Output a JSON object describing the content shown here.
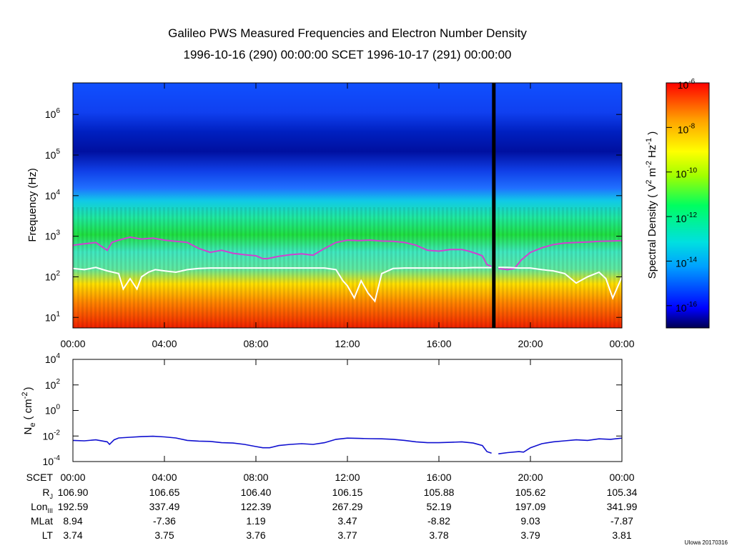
{
  "chart_data": [
    {
      "type": "heatmap",
      "title": "Galileo PWS Measured Frequencies and Electron Number Density",
      "subtitle": "1996-10-16 (290) 00:00:00 SCET 1996-10-17 (291) 00:00:00",
      "ylabel": "Frequency (Hz)",
      "ylabel_svg": "Frequency (Hz)",
      "yscale": "log",
      "ylim": [
        5.5,
        6000000
      ],
      "yticks": [
        {
          "base": "10",
          "exp": "1",
          "value": 10
        },
        {
          "base": "10",
          "exp": "2",
          "value": 100
        },
        {
          "base": "10",
          "exp": "3",
          "value": 1000
        },
        {
          "base": "10",
          "exp": "4",
          "value": 10000
        },
        {
          "base": "10",
          "exp": "5",
          "value": 100000
        },
        {
          "base": "10",
          "exp": "6",
          "value": 1000000
        }
      ],
      "xlim_hours": [
        0,
        24
      ],
      "xticks": [
        "00:00",
        "04:00",
        "08:00",
        "12:00",
        "16:00",
        "20:00",
        "00:00"
      ],
      "xtick_hours": [
        0,
        4,
        8,
        12,
        16,
        20,
        24
      ],
      "data_gap_hour": 18.4,
      "colorbar": {
        "label_prefix": "Spectral Density ( V",
        "label_mid1": " m",
        "label_mid2": " Hz",
        "label_suffix": " )",
        "sup_2": "2",
        "sup_neg2": "-2",
        "sup_neg1": "-1",
        "scale": "log",
        "range": [
          1e-17,
          1e-06
        ],
        "ticks": [
          {
            "base": "10",
            "exp": "-6",
            "value": 1e-06
          },
          {
            "base": "10",
            "exp": "-8",
            "value": 1e-08
          },
          {
            "base": "10",
            "exp": "-10",
            "value": 1e-10
          },
          {
            "base": "10",
            "exp": "-12",
            "value": 1e-12
          },
          {
            "base": "10",
            "exp": "-14",
            "value": 1e-14
          },
          {
            "base": "10",
            "exp": "-16",
            "value": 1e-16
          }
        ],
        "colors": [
          "#7f00ff",
          "#0000ff",
          "#00a0ff",
          "#00e0e0",
          "#00ff60",
          "#a0ff00",
          "#ffff00",
          "#ffa000",
          "#ff0000"
        ]
      },
      "series": [
        {
          "name": "upper hybrid frequency (magenta)",
          "color": "#d040d0",
          "hours": [
            0,
            0.5,
            1,
            1.5,
            1.7,
            2,
            2.5,
            3,
            3.5,
            4,
            4.5,
            5,
            5.5,
            6,
            6.5,
            7,
            7.5,
            8,
            8.3,
            8.5,
            9,
            9.5,
            10,
            10.5,
            11,
            11.5,
            12,
            12.5,
            13,
            13.5,
            14,
            14.5,
            15,
            15.5,
            16,
            16.5,
            17,
            17.3,
            17.6,
            17.9,
            18.1,
            18.3
          ],
          "values": [
            600,
            650,
            700,
            450,
            700,
            800,
            950,
            850,
            900,
            800,
            750,
            700,
            500,
            400,
            450,
            380,
            350,
            330,
            280,
            280,
            320,
            350,
            370,
            340,
            500,
            700,
            800,
            780,
            800,
            760,
            750,
            700,
            600,
            450,
            430,
            470,
            470,
            430,
            380,
            330,
            200,
            180
          ]
        },
        {
          "name": "upper hybrid frequency after gap (magenta)",
          "color": "#d040d0",
          "hours": [
            18.6,
            19,
            19.3,
            19.6,
            20,
            20.5,
            21,
            21.5,
            22,
            22.5,
            23,
            23.5,
            24
          ],
          "values": [
            160,
            150,
            160,
            260,
            400,
            520,
            620,
            680,
            700,
            720,
            750,
            760,
            780
          ]
        },
        {
          "name": "local frequency trace (white)",
          "color": "#ffffff",
          "hours": [
            0,
            0.5,
            1,
            1.5,
            2,
            2.2,
            2.5,
            2.8,
            3,
            3.3,
            3.6,
            4,
            4.5,
            5,
            5.5,
            6,
            7,
            8,
            9,
            10,
            11,
            11.5,
            11.8,
            12,
            12.3,
            12.6,
            12.9,
            13.2,
            13.5,
            14,
            14.5,
            15,
            16,
            17,
            17.5,
            18,
            18.3
          ],
          "values": [
            160,
            150,
            170,
            140,
            120,
            50,
            90,
            50,
            100,
            130,
            150,
            140,
            130,
            150,
            160,
            165,
            165,
            165,
            165,
            165,
            165,
            150,
            80,
            60,
            30,
            80,
            40,
            25,
            120,
            160,
            165,
            165,
            165,
            165,
            168,
            168,
            168
          ],
          "values_note": "Hz"
        },
        {
          "name": "local frequency trace after gap (white)",
          "color": "#ffffff",
          "hours": [
            18.6,
            19,
            19.5,
            20,
            20.5,
            21,
            21.5,
            22,
            22.5,
            23,
            23.3,
            23.6,
            24
          ],
          "values": [
            170,
            170,
            165,
            165,
            150,
            140,
            120,
            70,
            100,
            130,
            90,
            30,
            100
          ]
        }
      ]
    },
    {
      "type": "line",
      "ylabel_base": "N",
      "ylabel_sub": "e",
      "ylabel_unit_prefix": "( cm",
      "ylabel_unit_sup": "-2",
      "ylabel_unit_suffix": ")",
      "yscale": "log",
      "ylim": [
        0.0001,
        10000
      ],
      "yticks": [
        {
          "base": "10",
          "exp": "4",
          "value": 10000
        },
        {
          "base": "10",
          "exp": "2",
          "value": 100
        },
        {
          "base": "10",
          "exp": "0",
          "value": 1
        },
        {
          "base": "10",
          "exp": "-2",
          "value": 0.01
        },
        {
          "base": "10",
          "exp": "-4",
          "value": 0.0001
        }
      ],
      "series": [
        {
          "name": "Electron number density",
          "color": "#1010d0",
          "hours": [
            0,
            0.5,
            1,
            1.5,
            1.6,
            1.8,
            2,
            2.5,
            3,
            3.5,
            4,
            4.5,
            5,
            5.5,
            6,
            6.5,
            7,
            7.5,
            8,
            8.3,
            8.6,
            9,
            9.5,
            10,
            10.5,
            11,
            11.5,
            12,
            12.5,
            13,
            13.5,
            14,
            14.5,
            15,
            15.5,
            16,
            16.5,
            17,
            17.5,
            17.9,
            18.1,
            18.3
          ],
          "values": [
            0.0045,
            0.0042,
            0.005,
            0.0035,
            0.0022,
            0.005,
            0.007,
            0.008,
            0.009,
            0.0095,
            0.0085,
            0.007,
            0.0045,
            0.004,
            0.0038,
            0.003,
            0.0028,
            0.0022,
            0.0015,
            0.0012,
            0.0012,
            0.0018,
            0.0022,
            0.0025,
            0.0022,
            0.003,
            0.0055,
            0.0068,
            0.0065,
            0.0062,
            0.006,
            0.0055,
            0.0045,
            0.0035,
            0.003,
            0.003,
            0.0032,
            0.0035,
            0.0028,
            0.0018,
            0.0006,
            0.00045
          ]
        },
        {
          "name": "Electron number density after gap",
          "color": "#1010d0",
          "hours": [
            18.6,
            19,
            19.5,
            19.7,
            20,
            20.5,
            21,
            21.5,
            22,
            22.5,
            23,
            23.5,
            24
          ],
          "values": [
            0.0004,
            0.0005,
            0.0006,
            0.00055,
            0.0012,
            0.0025,
            0.0035,
            0.0042,
            0.005,
            0.0045,
            0.006,
            0.0055,
            0.0068
          ]
        }
      ]
    }
  ],
  "ephemeris": {
    "rows": [
      {
        "label": "SCET",
        "label_sub": "",
        "values": [
          "00:00",
          "04:00",
          "08:00",
          "12:00",
          "16:00",
          "20:00",
          "00:00"
        ]
      },
      {
        "label": "R",
        "label_sub": "J",
        "values": [
          "106.90",
          "106.65",
          "106.40",
          "106.15",
          "105.88",
          "105.62",
          "105.34"
        ]
      },
      {
        "label": "Lon",
        "label_sub": "III",
        "values": [
          "192.59",
          "337.49",
          "122.39",
          "267.29",
          "52.19",
          "197.09",
          "341.99"
        ]
      },
      {
        "label": "MLat",
        "label_sub": "",
        "values": [
          "8.94",
          "-7.36",
          "1.19",
          "3.47",
          "-8.82",
          "9.03",
          "-7.87"
        ]
      },
      {
        "label": "LT",
        "label_sub": "",
        "values": [
          "3.74",
          "3.75",
          "3.76",
          "3.77",
          "3.78",
          "3.79",
          "3.81"
        ]
      }
    ]
  },
  "credit": "UIowa 20170316"
}
